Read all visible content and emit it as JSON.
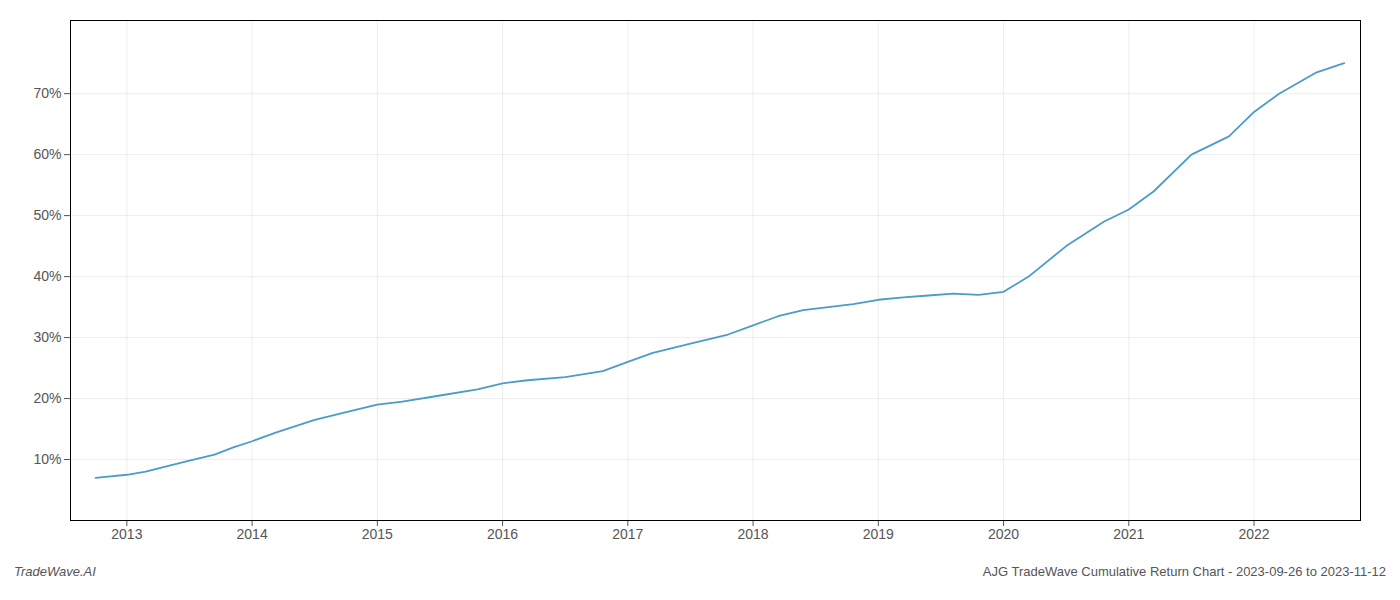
{
  "chart_data": {
    "type": "line",
    "title": "AJG TradeWave Cumulative Return Chart - 2023-09-26 to 2023-11-12",
    "annotations": [
      "TradeWave.AI"
    ],
    "color": "#4a9cc9",
    "x": [
      2012.75,
      2012.85,
      2013.0,
      2013.15,
      2013.3,
      2013.5,
      2013.7,
      2013.85,
      2014.0,
      2014.2,
      2014.5,
      2014.8,
      2015.0,
      2015.2,
      2015.5,
      2015.8,
      2016.0,
      2016.2,
      2016.5,
      2016.8,
      2017.0,
      2017.2,
      2017.5,
      2017.8,
      2018.0,
      2018.2,
      2018.4,
      2018.6,
      2018.8,
      2019.0,
      2019.2,
      2019.4,
      2019.6,
      2019.8,
      2020.0,
      2020.2,
      2020.5,
      2020.8,
      2021.0,
      2021.2,
      2021.5,
      2021.8,
      2022.0,
      2022.2,
      2022.5,
      2022.72
    ],
    "values": [
      7.0,
      7.2,
      7.5,
      8.0,
      8.8,
      9.8,
      10.8,
      12.0,
      13.0,
      14.5,
      16.5,
      18.0,
      19.0,
      19.5,
      20.5,
      21.5,
      22.5,
      23.0,
      23.5,
      24.5,
      26.0,
      27.5,
      29.0,
      30.5,
      32.0,
      33.5,
      34.5,
      35.0,
      35.5,
      36.2,
      36.6,
      36.9,
      37.2,
      37.0,
      37.5,
      40.0,
      45.0,
      49.0,
      51.0,
      54.0,
      60.0,
      63.0,
      67.0,
      70.0,
      73.5,
      75.0
    ],
    "xlim": [
      2012.55,
      2022.85
    ],
    "xticks": [
      2013,
      2014,
      2015,
      2016,
      2017,
      2018,
      2019,
      2020,
      2021,
      2022
    ],
    "ylim": [
      0,
      82
    ],
    "yticks": [
      {
        "value": 10,
        "label": "10%"
      },
      {
        "value": 20,
        "label": "20%"
      },
      {
        "value": 30,
        "label": "30%"
      },
      {
        "value": 40,
        "label": "40%"
      },
      {
        "value": 50,
        "label": "50%"
      },
      {
        "value": 60,
        "label": "60%"
      },
      {
        "value": 70,
        "label": "70%"
      }
    ],
    "grid": true
  }
}
